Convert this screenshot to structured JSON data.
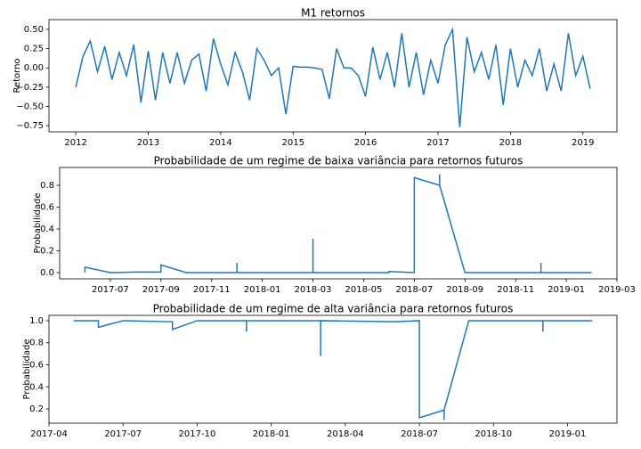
{
  "chart_data": [
    {
      "type": "line",
      "title": "M1 retornos",
      "ylabel": "Retorno",
      "color": "#1f77b4",
      "x": [
        2012.0,
        2012.1,
        2012.2,
        2012.3,
        2012.4,
        2012.5,
        2012.6,
        2012.7,
        2012.8,
        2012.9,
        2013.0,
        2013.1,
        2013.2,
        2013.3,
        2013.4,
        2013.5,
        2013.6,
        2013.7,
        2013.8,
        2013.9,
        2014.0,
        2014.1,
        2014.2,
        2014.3,
        2014.4,
        2014.5,
        2014.6,
        2014.7,
        2014.8,
        2014.9,
        2015.0,
        2015.1,
        2015.2,
        2015.3,
        2015.4,
        2015.5,
        2015.6,
        2015.7,
        2015.8,
        2015.9,
        2016.0,
        2016.1,
        2016.2,
        2016.3,
        2016.4,
        2016.5,
        2016.6,
        2016.7,
        2016.8,
        2016.9,
        2017.0,
        2017.1,
        2017.2,
        2017.3,
        2017.4,
        2017.5,
        2017.6,
        2017.7,
        2017.8,
        2017.9,
        2018.0,
        2018.1,
        2018.2,
        2018.3,
        2018.4,
        2018.5,
        2018.6,
        2018.7,
        2018.8,
        2018.9,
        2019.0,
        2019.1
      ],
      "values": [
        -0.25,
        0.15,
        0.35,
        -0.05,
        0.28,
        -0.15,
        0.2,
        -0.1,
        0.3,
        -0.45,
        0.22,
        -0.42,
        0.2,
        -0.2,
        0.2,
        -0.2,
        0.1,
        0.18,
        -0.3,
        0.38,
        0.05,
        -0.22,
        0.2,
        -0.05,
        -0.42,
        0.25,
        0.1,
        -0.1,
        0.0,
        -0.6,
        0.02,
        0.01,
        0.01,
        0.0,
        -0.02,
        -0.4,
        0.25,
        0.0,
        0.0,
        -0.1,
        -0.37,
        0.27,
        -0.15,
        0.2,
        -0.25,
        0.45,
        -0.25,
        0.2,
        -0.35,
        0.1,
        -0.2,
        0.3,
        0.5,
        -0.77,
        0.4,
        -0.05,
        0.2,
        -0.15,
        0.3,
        -0.48,
        0.25,
        -0.25,
        0.1,
        -0.1,
        0.25,
        -0.3,
        0.05,
        -0.3,
        0.45,
        -0.1,
        0.15,
        -0.27
      ],
      "xlim": [
        2011.63,
        2019.47
      ],
      "xticks": [
        2012,
        2013,
        2014,
        2015,
        2016,
        2017,
        2018,
        2019
      ],
      "ylim": [
        -0.83,
        0.627
      ],
      "yticks": [
        {
          "value": -0.75,
          "label": "−0.75"
        },
        {
          "value": -0.5,
          "label": "−0.50"
        },
        {
          "value": -0.25,
          "label": "−0.25"
        },
        {
          "value": 0,
          "label": "0.00"
        },
        0.25,
        {
          "value": 0.5,
          "label": "0.50"
        }
      ]
    },
    {
      "type": "line",
      "title": "Probabilidade de um regime de baixa variância para retornos futuros",
      "ylabel": "Probabilidade",
      "color": "#1f77b4",
      "x": [
        "2017-06",
        "2017-06",
        "2017-07",
        "2017-08",
        "2017-09",
        "2017-09",
        "2017-10",
        "2017-12",
        "2017-12",
        "2017-12",
        "2018-03",
        "2018-03",
        "2018-03",
        "2018-06",
        "2018-06",
        "2018-07",
        "2018-07",
        "2018-08",
        "2018-08",
        "2018-08",
        "2018-09",
        "2018-12",
        "2018-12",
        "2018-12",
        "2019-02"
      ],
      "values": [
        0.0,
        0.05,
        0.0,
        0.005,
        0.005,
        0.07,
        0.0,
        0.0,
        0.09,
        0.0,
        0.0,
        0.31,
        0.0,
        0.0,
        0.01,
        0.0,
        0.87,
        0.8,
        0.9,
        0.8,
        0.0,
        0.0,
        0.09,
        0.0,
        0.0
      ],
      "xlim": [
        "2017-05",
        "2019-03"
      ],
      "xticks": [
        "2017-07",
        "2017-09",
        "2017-11",
        "2018-01",
        "2018-03",
        "2018-05",
        "2018-07",
        "2018-09",
        "2018-11",
        "2019-01",
        "2019-03"
      ],
      "ylim": [
        -0.057,
        0.963
      ],
      "yticks": [
        {
          "value": 0,
          "label": "0.0"
        },
        0.2,
        0.4,
        0.6,
        0.8
      ]
    },
    {
      "type": "line",
      "title": "Probabilidade de um regime de alta variância para retornos futuros",
      "ylabel": "Probabilidade",
      "color": "#1f77b4",
      "x": [
        "2017-05",
        "2017-06",
        "2017-06",
        "2017-07",
        "2017-09",
        "2017-09",
        "2017-10",
        "2017-12",
        "2017-12",
        "2017-12",
        "2018-03",
        "2018-03",
        "2018-03",
        "2018-06",
        "2018-07",
        "2018-07",
        "2018-08",
        "2018-08",
        "2018-08",
        "2018-09",
        "2018-12",
        "2018-12",
        "2018-12",
        "2019-02"
      ],
      "values": [
        1.0,
        1.0,
        0.94,
        1.0,
        0.99,
        0.92,
        1.0,
        1.0,
        0.9,
        1.0,
        1.0,
        0.68,
        1.0,
        0.99,
        1.0,
        0.12,
        0.19,
        0.1,
        0.19,
        1.0,
        1.0,
        0.9,
        1.0,
        1.0
      ],
      "xlim": [
        "2017-04",
        "2019-03"
      ],
      "xticks": [
        "2017-04",
        "2017-07",
        "2017-10",
        "2018-01",
        "2018-04",
        "2018-07",
        "2018-10",
        "2019-01"
      ],
      "ylim": [
        0.071,
        1.048
      ],
      "yticks": [
        0.2,
        0.4,
        0.6,
        0.8,
        {
          "value": 1,
          "label": "1.0"
        }
      ]
    }
  ]
}
